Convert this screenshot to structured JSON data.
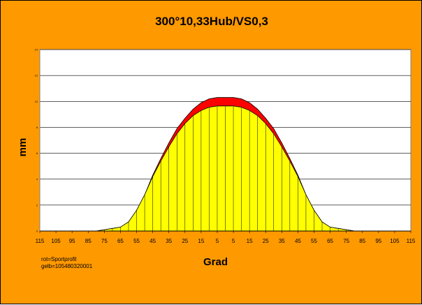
{
  "chart_data": {
    "type": "area",
    "title": "300°10,33Hub/VS0,3",
    "xlabel": "Grad",
    "ylabel": "mm",
    "x_ticks": [
      "115",
      "105",
      "95",
      "85",
      "75",
      "65",
      "55",
      "45",
      "35",
      "25",
      "15",
      "5",
      "5",
      "15",
      "25",
      "35",
      "45",
      "55",
      "65",
      "75",
      "85",
      "95",
      "105",
      "115"
    ],
    "y_ticks": [
      "0",
      "2",
      "4",
      "6",
      "8",
      "10",
      "12",
      "14"
    ],
    "ylim": [
      0,
      14
    ],
    "xlim": [
      -115,
      115
    ],
    "grid": "horizontal",
    "plot_background": "#ffffff",
    "note_lines": [
      "rot=Sportprofil",
      "gelb=105480320001"
    ],
    "series": [
      {
        "name": "rot=Sportprofil",
        "color": "#ff0000",
        "x": [
          -80,
          -75,
          -70,
          -65,
          -60,
          -55,
          -50,
          -45,
          -40,
          -35,
          -30,
          -25,
          -20,
          -15,
          -10,
          -5,
          0,
          5,
          10,
          15,
          20,
          25,
          30,
          35,
          40,
          45,
          50,
          55,
          60,
          65,
          70,
          75,
          80
        ],
        "values": [
          0,
          0.1,
          0.2,
          0.3,
          0.7,
          1.6,
          2.8,
          4.3,
          5.6,
          6.8,
          7.9,
          8.7,
          9.4,
          9.9,
          10.2,
          10.3,
          10.3,
          10.3,
          10.2,
          9.9,
          9.4,
          8.7,
          7.9,
          6.8,
          5.6,
          4.3,
          2.8,
          1.6,
          0.7,
          0.3,
          0.2,
          0.1,
          0
        ]
      },
      {
        "name": "gelb=105480320001",
        "color": "#ffff00",
        "x": [
          -80,
          -75,
          -70,
          -65,
          -60,
          -55,
          -50,
          -45,
          -40,
          -35,
          -30,
          -25,
          -20,
          -15,
          -10,
          -5,
          0,
          5,
          10,
          15,
          20,
          25,
          30,
          35,
          40,
          45,
          50,
          55,
          60,
          65,
          70,
          75,
          80
        ],
        "values": [
          0,
          0.1,
          0.2,
          0.3,
          0.7,
          1.6,
          2.8,
          4.2,
          5.4,
          6.5,
          7.5,
          8.3,
          8.9,
          9.3,
          9.55,
          9.65,
          9.65,
          9.65,
          9.55,
          9.3,
          8.9,
          8.3,
          7.5,
          6.5,
          5.4,
          4.2,
          2.8,
          1.6,
          0.7,
          0.3,
          0.2,
          0.1,
          0
        ]
      }
    ]
  }
}
